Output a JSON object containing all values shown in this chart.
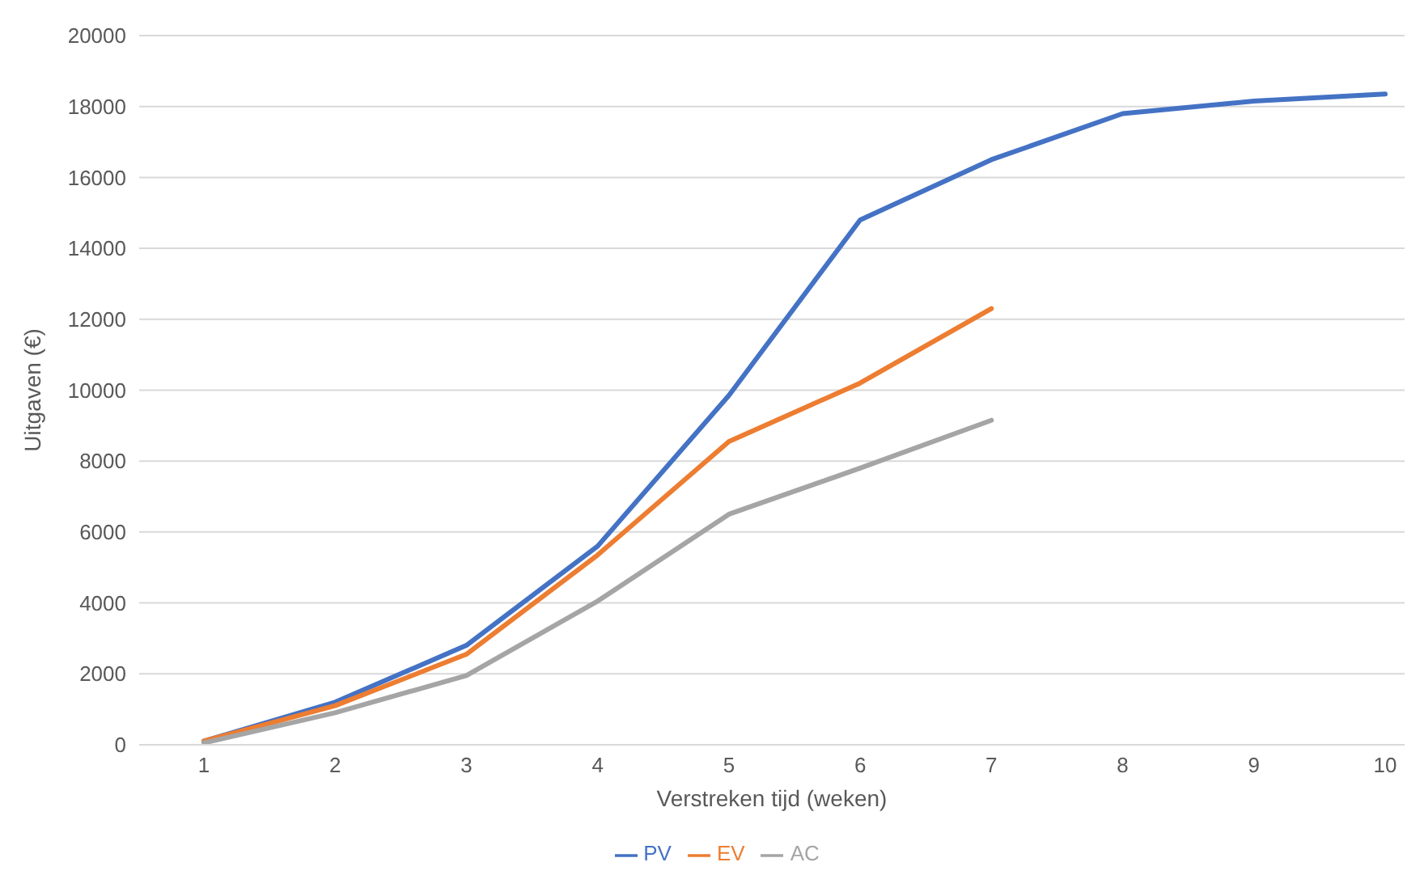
{
  "chart_data": {
    "type": "line",
    "xlabel": "Verstreken tijd (weken)",
    "ylabel": "Uitgaven (€)",
    "categories": [
      "1",
      "2",
      "3",
      "4",
      "5",
      "6",
      "7",
      "8",
      "9",
      "10"
    ],
    "series": [
      {
        "name": "PV",
        "color": "#4472c4",
        "values": [
          100,
          1200,
          2800,
          5600,
          9850,
          14800,
          16500,
          17800,
          18150,
          18350
        ]
      },
      {
        "name": "EV",
        "color": "#ed7d31",
        "values": [
          100,
          1100,
          2550,
          5350,
          8550,
          10200,
          12300,
          null,
          null,
          null
        ]
      },
      {
        "name": "AC",
        "color": "#a5a5a5",
        "values": [
          50,
          900,
          1950,
          4050,
          6500,
          7800,
          9150,
          null,
          null,
          null
        ]
      }
    ],
    "ylim": [
      0,
      20000
    ],
    "yticks": [
      0,
      2000,
      4000,
      6000,
      8000,
      10000,
      12000,
      14000,
      16000,
      18000,
      20000
    ],
    "grid": "y",
    "legend": "bottom",
    "marker": "none",
    "line_style": "solid"
  }
}
